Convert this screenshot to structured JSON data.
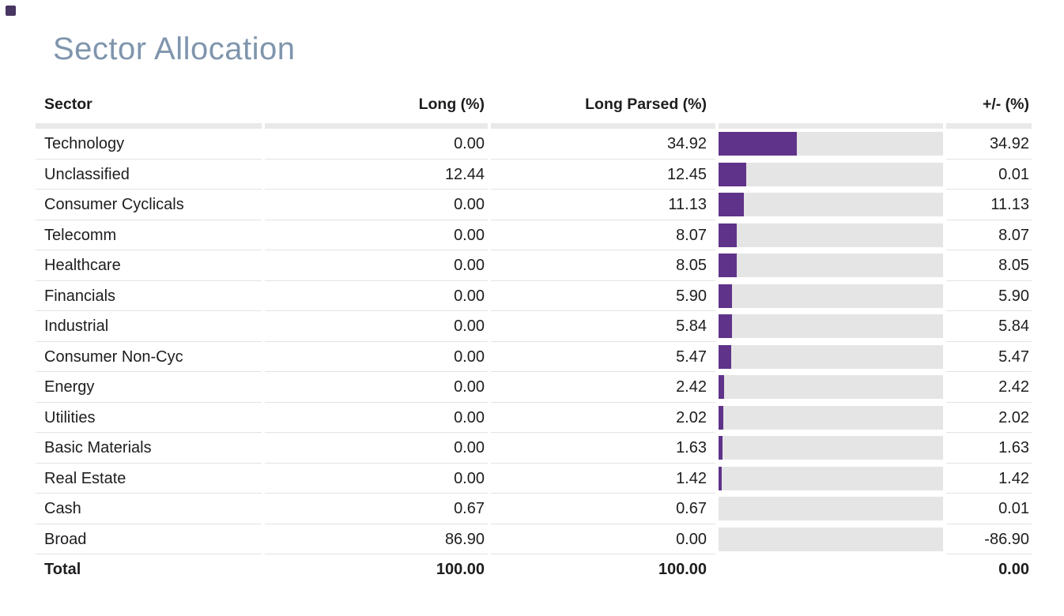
{
  "title": "Sector Allocation",
  "colors": {
    "accent_bar": "#5f3389",
    "bar_track": "#e5e5e5",
    "title_text": "#7f95ad",
    "divider": "#e3e3e3",
    "header_band": "#e9e9e9",
    "body_text": "#1d1d20",
    "corner_mark": "#473661"
  },
  "table": {
    "columns": {
      "sector": "Sector",
      "long": "Long (%)",
      "long_parsed": "Long Parsed (%)",
      "diff": "+/- (%)"
    },
    "rows": [
      {
        "sector": "Technology",
        "long": "0.00",
        "long_parsed": "34.92",
        "diff": "34.92",
        "bar_pct": 34.92
      },
      {
        "sector": "Unclassified",
        "long": "12.44",
        "long_parsed": "12.45",
        "diff": "0.01",
        "bar_pct": 12.45
      },
      {
        "sector": "Consumer Cyclicals",
        "long": "0.00",
        "long_parsed": "11.13",
        "diff": "11.13",
        "bar_pct": 11.13
      },
      {
        "sector": "Telecomm",
        "long": "0.00",
        "long_parsed": "8.07",
        "diff": "8.07",
        "bar_pct": 8.07
      },
      {
        "sector": "Healthcare",
        "long": "0.00",
        "long_parsed": "8.05",
        "diff": "8.05",
        "bar_pct": 8.05
      },
      {
        "sector": "Financials",
        "long": "0.00",
        "long_parsed": "5.90",
        "diff": "5.90",
        "bar_pct": 5.9
      },
      {
        "sector": "Industrial",
        "long": "0.00",
        "long_parsed": "5.84",
        "diff": "5.84",
        "bar_pct": 5.84
      },
      {
        "sector": "Consumer Non-Cyc",
        "long": "0.00",
        "long_parsed": "5.47",
        "diff": "5.47",
        "bar_pct": 5.47
      },
      {
        "sector": "Energy",
        "long": "0.00",
        "long_parsed": "2.42",
        "diff": "2.42",
        "bar_pct": 2.42
      },
      {
        "sector": "Utilities",
        "long": "0.00",
        "long_parsed": "2.02",
        "diff": "2.02",
        "bar_pct": 2.02
      },
      {
        "sector": "Basic Materials",
        "long": "0.00",
        "long_parsed": "1.63",
        "diff": "1.63",
        "bar_pct": 1.63
      },
      {
        "sector": "Real Estate",
        "long": "0.00",
        "long_parsed": "1.42",
        "diff": "1.42",
        "bar_pct": 1.42
      },
      {
        "sector": "Cash",
        "long": "0.67",
        "long_parsed": "0.67",
        "diff": "0.01",
        "bar_pct": 0.67
      },
      {
        "sector": "Broad",
        "long": "86.90",
        "long_parsed": "0.00",
        "diff": "-86.90",
        "bar_pct": 0
      },
      {
        "sector": "Total",
        "long": "100.00",
        "long_parsed": "100.00",
        "diff": "0.00",
        "is_total": true
      }
    ]
  },
  "chart_data": {
    "type": "bar",
    "orientation": "horizontal",
    "title": "Sector Allocation",
    "categories": [
      "Technology",
      "Unclassified",
      "Consumer Cyclicals",
      "Telecomm",
      "Healthcare",
      "Financials",
      "Industrial",
      "Consumer Non-Cyc",
      "Energy",
      "Utilities",
      "Basic Materials",
      "Real Estate",
      "Cash",
      "Broad"
    ],
    "series": [
      {
        "name": "Long (%)",
        "values": [
          0.0,
          12.44,
          0.0,
          0.0,
          0.0,
          0.0,
          0.0,
          0.0,
          0.0,
          0.0,
          0.0,
          0.0,
          0.67,
          86.9
        ]
      },
      {
        "name": "Long Parsed (%)",
        "values": [
          34.92,
          12.45,
          11.13,
          8.07,
          8.05,
          5.9,
          5.84,
          5.47,
          2.42,
          2.02,
          1.63,
          1.42,
          0.67,
          0.0
        ]
      },
      {
        "name": "+/- (%)",
        "values": [
          34.92,
          0.01,
          11.13,
          8.07,
          8.05,
          5.9,
          5.84,
          5.47,
          2.42,
          2.02,
          1.63,
          1.42,
          0.01,
          -86.9
        ]
      }
    ],
    "plotted_series": "Long Parsed (%)",
    "totals": {
      "Long (%)": 100.0,
      "Long Parsed (%)": 100.0,
      "+/- (%)": 0.0
    },
    "xlim": [
      0,
      100
    ],
    "grid": false,
    "legend": false,
    "bar_color": "#5f3389"
  }
}
